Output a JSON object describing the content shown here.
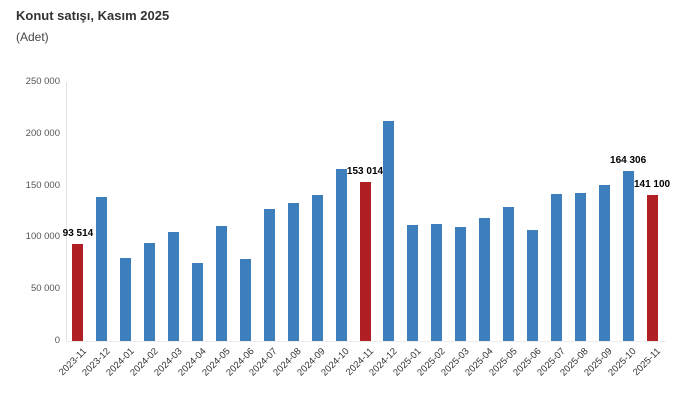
{
  "chart_data": {
    "type": "bar",
    "title": "Konut satışı, Kasım 2025",
    "subtitle": "(Adet)",
    "xlabel": "",
    "ylabel": "",
    "ylim": [
      0,
      250000
    ],
    "ytick_interval": 50000,
    "ytick_labels": [
      "0",
      "50 000",
      "100 000",
      "150 000",
      "200 000",
      "250 000"
    ],
    "grid": false,
    "legend": false,
    "categories": [
      "2023-11",
      "2023-12",
      "2024-01",
      "2024-02",
      "2024-03",
      "2024-04",
      "2024-05",
      "2024-06",
      "2024-07",
      "2024-08",
      "2024-09",
      "2024-10",
      "2024-11",
      "2024-12",
      "2025-01",
      "2025-02",
      "2025-03",
      "2025-04",
      "2025-05",
      "2025-06",
      "2025-07",
      "2025-08",
      "2025-09",
      "2025-10",
      "2025-11"
    ],
    "values": [
      93514,
      139000,
      80000,
      94500,
      105500,
      75500,
      111000,
      79000,
      127500,
      133500,
      141000,
      166000,
      153014,
      212500,
      111500,
      113000,
      110500,
      118500,
      129000,
      107000,
      142000,
      142500,
      151000,
      164306,
      141100
    ],
    "highlight_indices": [
      0,
      12,
      24
    ],
    "labeled_points": [
      {
        "index": 0,
        "label": "93 514"
      },
      {
        "index": 12,
        "label": "153 014"
      },
      {
        "index": 23,
        "label": "164 306"
      },
      {
        "index": 24,
        "label": "141 100"
      }
    ],
    "colors": {
      "bar": "#3d7ebc",
      "highlight": "#b01f24",
      "title_text": "#333333",
      "axis_text": "#555555",
      "data_label_text": "#000000",
      "axis_line": "#e3e3e3"
    }
  }
}
